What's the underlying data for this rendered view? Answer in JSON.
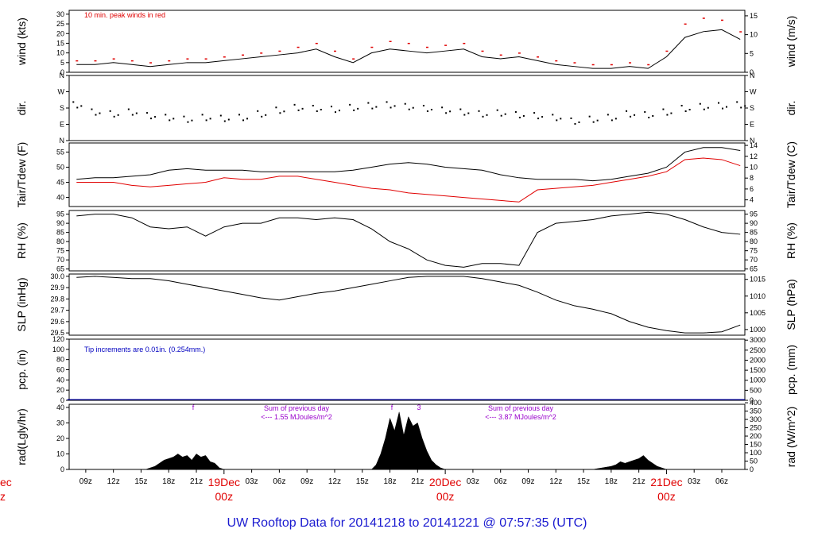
{
  "title": "UW Rooftop Data for 20141218  to  20141221 @ 07:57:35  (UTC)",
  "x_ticks": [
    "09z",
    "12z",
    "15z",
    "18z",
    "21z",
    "03z",
    "06z",
    "09z",
    "12z",
    "15z",
    "18z",
    "21z",
    "03z",
    "06z",
    "09z",
    "12z",
    "15z",
    "18z",
    "21z",
    "03z",
    "06z"
  ],
  "x_tick_hours": [
    9,
    12,
    15,
    18,
    21,
    27,
    30,
    33,
    36,
    39,
    42,
    45,
    51,
    54,
    57,
    60,
    63,
    66,
    69,
    75,
    78
  ],
  "day_labels": [
    {
      "date": "19Dec",
      "time": "00z",
      "hour": 24
    },
    {
      "date": "20Dec",
      "time": "00z",
      "hour": 48
    },
    {
      "date": "21Dec",
      "time": "00z",
      "hour": 72
    }
  ],
  "clipped_left_labels": {
    "date": "ec",
    "time": "z"
  },
  "colors": {
    "obs": "#000000",
    "peak": "#e00000",
    "dewpoint": "#e00000",
    "note_blue": "#0000c0",
    "note_purple": "#9900cc",
    "title": "#1a1ad0"
  },
  "chart_data": [
    {
      "type": "line",
      "name": "wind",
      "ylabel_left": "wind (kts)",
      "ylabel_right": "wind (m/s)",
      "left_ticks": [
        0,
        5,
        10,
        15,
        20,
        25,
        30
      ],
      "right_ticks": [
        0,
        5,
        10,
        15
      ],
      "ylim": [
        0,
        32
      ],
      "annotation": "10 min. peak winds in red",
      "series": [
        {
          "name": "wind",
          "x": [
            8,
            10,
            12,
            14,
            16,
            18,
            20,
            22,
            24,
            26,
            28,
            30,
            32,
            34,
            36,
            38,
            40,
            42,
            44,
            46,
            48,
            50,
            52,
            54,
            56,
            58,
            60,
            62,
            64,
            66,
            68,
            70,
            72,
            74,
            76,
            78,
            80
          ],
          "y": [
            4,
            4,
            5,
            4,
            3,
            4,
            5,
            5,
            6,
            7,
            8,
            9,
            10,
            12,
            8,
            5,
            10,
            12,
            11,
            10,
            11,
            12,
            8,
            7,
            8,
            6,
            4,
            3,
            2,
            2,
            3,
            2,
            8,
            18,
            21,
            22,
            17
          ]
        },
        {
          "name": "peak",
          "x": [
            8,
            10,
            12,
            14,
            16,
            18,
            20,
            22,
            24,
            26,
            28,
            30,
            32,
            34,
            36,
            38,
            40,
            42,
            44,
            46,
            48,
            50,
            52,
            54,
            56,
            58,
            60,
            62,
            64,
            66,
            68,
            70,
            72,
            74,
            76,
            78,
            80
          ],
          "y": [
            6,
            6,
            7,
            6,
            5,
            6,
            7,
            7,
            8,
            9,
            10,
            11,
            13,
            15,
            11,
            7,
            13,
            16,
            15,
            13,
            14,
            15,
            11,
            9,
            10,
            8,
            6,
            5,
            4,
            4,
            5,
            4,
            11,
            25,
            28,
            27,
            21
          ]
        }
      ]
    },
    {
      "type": "scatter",
      "name": "dir",
      "ylabel_left": "dir.",
      "ylabel_right": "dir.",
      "left_ticks": [
        "N",
        "E",
        "S",
        "W",
        "N"
      ],
      "right_ticks": [
        "N",
        "E",
        "S",
        "W",
        "N"
      ],
      "ylim": [
        0,
        360
      ],
      "x": [
        8,
        10,
        12,
        14,
        16,
        18,
        20,
        22,
        24,
        26,
        28,
        30,
        32,
        34,
        36,
        38,
        40,
        42,
        44,
        46,
        48,
        50,
        52,
        54,
        56,
        58,
        60,
        62,
        64,
        66,
        68,
        70,
        72,
        74,
        76,
        78,
        80
      ],
      "y": [
        200,
        160,
        150,
        160,
        140,
        130,
        120,
        130,
        125,
        130,
        150,
        170,
        185,
        180,
        175,
        185,
        195,
        200,
        190,
        180,
        170,
        160,
        150,
        155,
        145,
        140,
        130,
        110,
        120,
        130,
        150,
        145,
        160,
        180,
        190,
        195,
        200
      ]
    },
    {
      "type": "line",
      "name": "temp",
      "ylabel_left": "Tair/Tdew (F)",
      "ylabel_right": "Tair/Tdew (C)",
      "left_ticks": [
        40,
        45,
        50,
        55
      ],
      "right_ticks": [
        4,
        6,
        8,
        10,
        12,
        14
      ],
      "ylim": [
        37,
        58
      ],
      "series": [
        {
          "name": "Tair",
          "x": [
            8,
            10,
            12,
            14,
            16,
            18,
            20,
            22,
            24,
            26,
            28,
            30,
            32,
            34,
            36,
            38,
            40,
            42,
            44,
            46,
            48,
            50,
            52,
            54,
            56,
            58,
            60,
            62,
            64,
            66,
            68,
            70,
            72,
            74,
            76,
            78,
            80
          ],
          "y": [
            46,
            46.5,
            46.5,
            47,
            47.5,
            49,
            49.5,
            49,
            49,
            49,
            48.5,
            48.5,
            48.5,
            48.5,
            48.5,
            49,
            50,
            51,
            51.5,
            51,
            50,
            49.5,
            49,
            47.5,
            46.5,
            46,
            46,
            46,
            45.5,
            46,
            47,
            48,
            50,
            55,
            56.5,
            56.5,
            55.5
          ]
        },
        {
          "name": "Tdew",
          "x": [
            8,
            10,
            12,
            14,
            16,
            18,
            20,
            22,
            24,
            26,
            28,
            30,
            32,
            34,
            36,
            38,
            40,
            42,
            44,
            46,
            48,
            50,
            52,
            54,
            56,
            58,
            60,
            62,
            64,
            66,
            68,
            70,
            72,
            74,
            76,
            78,
            80
          ],
          "y": [
            45,
            45,
            45,
            44,
            43.5,
            44,
            44.5,
            45,
            46.5,
            46,
            46,
            47,
            47,
            46,
            45,
            44,
            43,
            42.5,
            41.5,
            41,
            40.5,
            40,
            39.5,
            39,
            38.5,
            42.5,
            43,
            43.5,
            44,
            45,
            46,
            47,
            48.5,
            52.5,
            53,
            52.5,
            50.5
          ]
        }
      ]
    },
    {
      "type": "line",
      "name": "rh",
      "ylabel_left": "RH (%)",
      "ylabel_right": "RH (%)",
      "left_ticks": [
        65,
        70,
        75,
        80,
        85,
        90,
        95
      ],
      "right_ticks": [
        65,
        70,
        75,
        80,
        85,
        90,
        95
      ],
      "ylim": [
        64,
        97
      ],
      "series": [
        {
          "name": "RH",
          "x": [
            8,
            10,
            12,
            14,
            16,
            18,
            20,
            22,
            24,
            26,
            28,
            30,
            32,
            34,
            36,
            38,
            40,
            42,
            44,
            46,
            48,
            50,
            52,
            54,
            56,
            58,
            60,
            62,
            64,
            66,
            68,
            70,
            72,
            74,
            76,
            78,
            80
          ],
          "y": [
            94,
            95,
            95,
            93,
            88,
            87,
            88,
            83,
            88,
            90,
            90,
            93,
            93,
            92,
            93,
            92,
            87,
            80,
            76,
            70,
            67,
            66,
            68,
            68,
            67,
            85,
            90,
            91,
            92,
            94,
            95,
            96,
            95,
            92,
            88,
            85,
            84
          ]
        }
      ]
    },
    {
      "type": "line",
      "name": "slp",
      "ylabel_left": "SLP (inHg)",
      "ylabel_right": "SLP (hPa)",
      "left_ticks": [
        29.5,
        29.6,
        29.7,
        29.8,
        29.9,
        30.0
      ],
      "right_ticks": [
        1000,
        1005,
        1010,
        1015
      ],
      "ylim": [
        29.48,
        30.02
      ],
      "series": [
        {
          "name": "SLP",
          "x": [
            8,
            10,
            12,
            14,
            16,
            18,
            20,
            22,
            24,
            26,
            28,
            30,
            32,
            34,
            36,
            38,
            40,
            42,
            44,
            46,
            48,
            50,
            52,
            54,
            56,
            58,
            60,
            62,
            64,
            66,
            68,
            70,
            72,
            74,
            76,
            78,
            80
          ],
          "y": [
            29.99,
            30.0,
            29.99,
            29.98,
            29.98,
            29.96,
            29.93,
            29.9,
            29.87,
            29.84,
            29.81,
            29.79,
            29.82,
            29.85,
            29.87,
            29.9,
            29.93,
            29.96,
            29.99,
            30.0,
            30.0,
            30.0,
            29.98,
            29.95,
            29.92,
            29.86,
            29.79,
            29.74,
            29.71,
            29.67,
            29.6,
            29.55,
            29.52,
            29.5,
            29.5,
            29.51,
            29.57
          ]
        }
      ]
    },
    {
      "type": "line",
      "name": "pcp",
      "ylabel_left": "pcp. (in)",
      "ylabel_right": "pcp. (mm)",
      "left_ticks": [
        0,
        20,
        40,
        60,
        80,
        100,
        120
      ],
      "right_ticks": [
        0,
        500,
        1000,
        1500,
        2000,
        2500,
        3000
      ],
      "ylim": [
        0,
        120
      ],
      "annotation": "Tip increments are 0.01in. (0.254mm.)",
      "series": [
        {
          "name": "pcp",
          "x": [
            7,
            80.5
          ],
          "y": [
            0,
            0
          ]
        }
      ]
    },
    {
      "type": "area",
      "name": "rad",
      "ylabel_left": "rad(Lgly/hr)",
      "ylabel_right": "rad (W/m^2)",
      "left_ticks": [
        0,
        10,
        20,
        30,
        40
      ],
      "right_ticks": [
        0,
        50,
        100,
        150,
        200,
        250,
        300,
        350,
        400
      ],
      "ylim": [
        0,
        42
      ],
      "annotations": [
        {
          "lines": [
            "Sum of previous day",
            "<--- 1.55 MJoules/m^2"
          ]
        },
        {
          "lines": [
            "Sum of previous day",
            "<--- 3.87 MJoules/m^2"
          ]
        }
      ],
      "markers": [
        "f",
        "f",
        "3"
      ],
      "series": [
        {
          "name": "rad",
          "x": [
            15.5,
            16,
            16.5,
            17,
            17.5,
            18,
            18.5,
            19,
            19.5,
            20,
            20.5,
            21,
            21.5,
            22,
            22.5,
            23,
            23.5,
            24,
            40,
            40.5,
            41,
            41.5,
            42,
            42.5,
            43,
            43.5,
            44,
            44.5,
            45,
            45.5,
            46,
            46.5,
            47,
            47.5,
            48,
            64,
            65,
            66,
            66.5,
            67,
            67.5,
            68,
            68.5,
            69,
            69.5,
            70,
            70.5,
            71,
            72
          ],
          "y": [
            0,
            1,
            2,
            4,
            6,
            7,
            8,
            10,
            8,
            9,
            6,
            10,
            8,
            9,
            5,
            4,
            1,
            0,
            0,
            3,
            10,
            20,
            33,
            25,
            37,
            22,
            34,
            28,
            30,
            20,
            12,
            6,
            3,
            1,
            0,
            0,
            1,
            2,
            3,
            5,
            4,
            5,
            6,
            7,
            9,
            6,
            4,
            2,
            0
          ]
        }
      ]
    }
  ]
}
